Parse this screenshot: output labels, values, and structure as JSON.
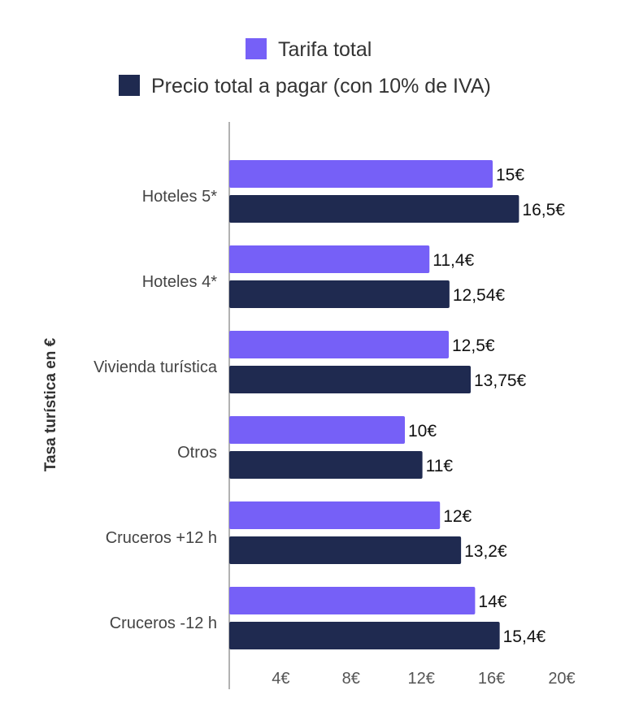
{
  "chart_data": {
    "type": "bar",
    "orientation": "horizontal",
    "title": "",
    "xlabel": "",
    "ylabel": "Tasa turística en €",
    "categories": [
      "Hoteles 5*",
      "Hoteles 4*",
      "Vivienda turística",
      "Otros",
      "Cruceros +12 h",
      "Cruceros -12 h"
    ],
    "series": [
      {
        "name": "Tarifa total",
        "color": "#7660F7",
        "values": [
          15,
          11.4,
          12.5,
          10,
          12,
          14
        ],
        "labels": [
          "15€",
          "11,4€",
          "12,5€",
          "10€",
          "12€",
          "14€"
        ]
      },
      {
        "name": "Precio total a pagar (con 10% de IVA)",
        "color": "#1F2A50",
        "values": [
          16.5,
          12.54,
          13.75,
          11,
          13.2,
          15.4
        ],
        "labels": [
          "16,5€",
          "12,54€",
          "13,75€",
          "11€",
          "13,2€",
          "15,4€"
        ]
      }
    ],
    "xticks": [
      4,
      8,
      12,
      16,
      20
    ],
    "xtick_labels": [
      "4€",
      "8€",
      "12€",
      "16€",
      "20€"
    ],
    "xlim": [
      0,
      20
    ],
    "grid": false,
    "legend_position": "top-center"
  }
}
